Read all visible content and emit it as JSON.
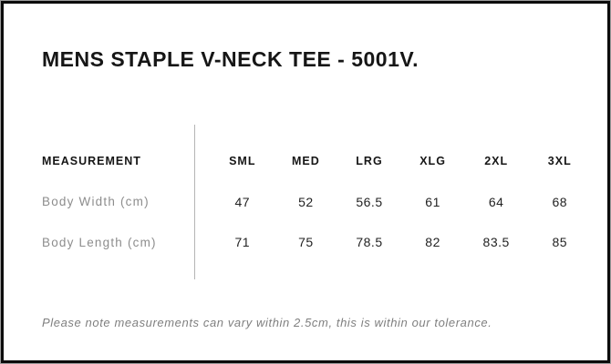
{
  "page": {
    "title": "MENS STAPLE V-NECK TEE - 5001V.",
    "note": "Please note measurements can vary within 2.5cm, this is within our tolerance."
  },
  "size_table": {
    "measurement_header": "MEASUREMENT",
    "sizes": [
      "SML",
      "MED",
      "LRG",
      "XLG",
      "2XL",
      "3XL"
    ],
    "rows": [
      {
        "label": "Body Width (cm)",
        "values": [
          "47",
          "52",
          "56.5",
          "61",
          "64",
          "68"
        ]
      },
      {
        "label": "Body Length (cm)",
        "values": [
          "71",
          "75",
          "78.5",
          "82",
          "83.5",
          "85"
        ]
      }
    ]
  },
  "colors": {
    "border_frame": "#0c0c0c",
    "text_primary": "#161616",
    "text_muted": "#8d8d8d",
    "text_note": "#7f7f7f",
    "divider": "#b4b4b4",
    "background": "#ffffff"
  }
}
